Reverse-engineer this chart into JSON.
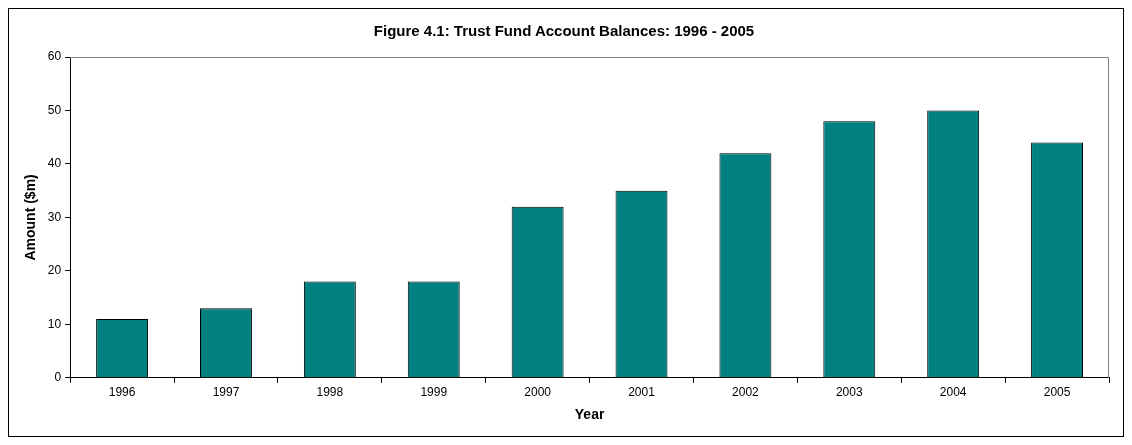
{
  "chart_data": {
    "type": "bar",
    "title": "Figure 4.1: Trust Fund Account Balances: 1996 - 2005",
    "xlabel": "Year",
    "ylabel": "Amount ($m)",
    "categories": [
      "1996",
      "1997",
      "1998",
      "1999",
      "2000",
      "2001",
      "2002",
      "2003",
      "2004",
      "2005"
    ],
    "values": [
      11,
      13,
      18,
      18,
      32,
      35,
      42,
      48,
      50,
      44
    ],
    "color": "#008080",
    "ylim": [
      0,
      60
    ],
    "yticks": [
      0,
      10,
      20,
      30,
      40,
      50,
      60
    ],
    "grid": false,
    "legend": false
  }
}
